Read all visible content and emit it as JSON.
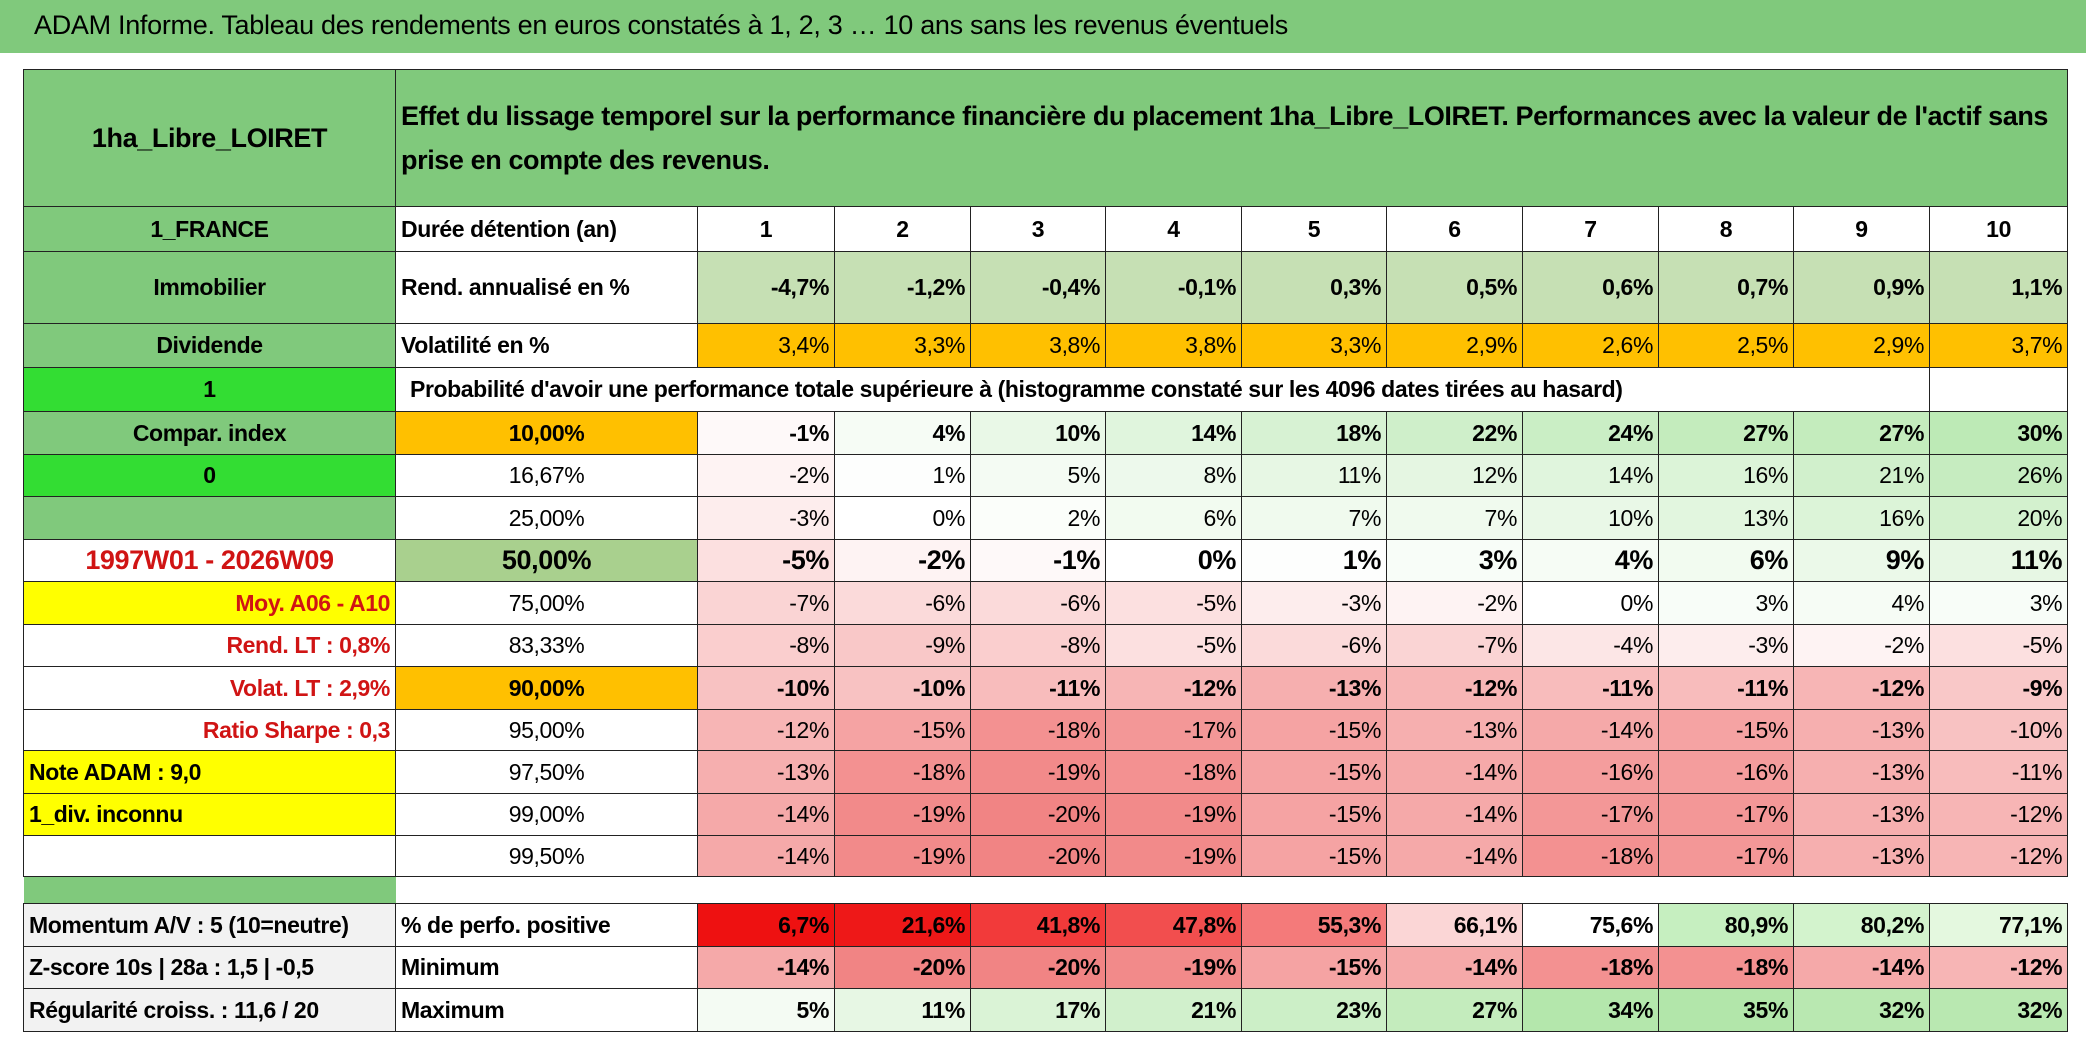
{
  "title": "ADAM Informe. Tableau des rendements en euros constatés à 1, 2, 3 … 10 ans sans les revenus éventuels",
  "header": {
    "name": "1ha_Libre_LOIRET",
    "description": "Effet du lissage temporel sur la performance financière du placement 1ha_Libre_LOIRET. Performances avec la valeur de l'actif sans prise en compte des revenus."
  },
  "rows": [
    {
      "left": "1_FRANCE",
      "label": "Durée détention (an)",
      "cells": [
        1,
        2,
        3,
        4,
        5,
        6,
        7,
        8,
        9,
        10
      ]
    },
    {
      "left": "Immobilier",
      "label": "Rend. annualisé en %",
      "cells": [
        "-4,7%",
        "-1,2%",
        "-0,4%",
        "-0,1%",
        "0,3%",
        "0,5%",
        "0,6%",
        "0,7%",
        "0,9%",
        "1,1%"
      ]
    },
    {
      "left": "Dividende",
      "label": "Volatilité en %",
      "cells": [
        "3,4%",
        "3,3%",
        "3,8%",
        "3,8%",
        "3,3%",
        "2,9%",
        "2,6%",
        "2,5%",
        "2,9%",
        "3,7%"
      ]
    },
    {
      "left": "1",
      "label": "Probabilité d'avoir une performance totale supérieure à (histogramme constaté sur les 4096 dates tirées au hasard)"
    },
    {
      "left": "Compar. index",
      "label": "10,00%",
      "cells": [
        "-1%",
        "4%",
        "10%",
        "14%",
        "18%",
        "22%",
        "24%",
        "27%",
        "27%",
        "30%"
      ]
    },
    {
      "left": "0",
      "label": "16,67%",
      "cells": [
        "-2%",
        "1%",
        "5%",
        "8%",
        "11%",
        "12%",
        "14%",
        "16%",
        "21%",
        "26%"
      ]
    },
    {
      "label": "25,00%",
      "cells": [
        "-3%",
        "0%",
        "2%",
        "6%",
        "7%",
        "7%",
        "10%",
        "13%",
        "16%",
        "20%"
      ]
    },
    {
      "left": "1997W01 - 2026W09",
      "label": "50,00%",
      "cells": [
        "-5%",
        "-2%",
        "-1%",
        "0%",
        "1%",
        "3%",
        "4%",
        "6%",
        "9%",
        "11%"
      ]
    },
    {
      "left": "Moy. A06 - A10",
      "label": "75,00%",
      "cells": [
        "-7%",
        "-6%",
        "-6%",
        "-5%",
        "-3%",
        "-2%",
        "0%",
        "3%",
        "4%",
        "3%"
      ]
    },
    {
      "left": "Rend. LT :   0,8%",
      "label": "83,33%",
      "cells": [
        "-8%",
        "-9%",
        "-8%",
        "-5%",
        "-6%",
        "-7%",
        "-4%",
        "-3%",
        "-2%",
        "-5%"
      ]
    },
    {
      "left": "Volat. LT :   2,9%",
      "label": "90,00%",
      "cells": [
        "-10%",
        "-10%",
        "-11%",
        "-12%",
        "-13%",
        "-12%",
        "-11%",
        "-11%",
        "-12%",
        "-9%"
      ]
    },
    {
      "left": "Ratio Sharpe :    0,3",
      "label": "95,00%",
      "cells": [
        "-12%",
        "-15%",
        "-18%",
        "-17%",
        "-15%",
        "-13%",
        "-14%",
        "-15%",
        "-13%",
        "-10%"
      ]
    },
    {
      "left": "Note ADAM : 9,0",
      "label": "97,50%",
      "cells": [
        "-13%",
        "-18%",
        "-19%",
        "-18%",
        "-15%",
        "-14%",
        "-16%",
        "-16%",
        "-13%",
        "-11%"
      ]
    },
    {
      "left": "1_div. inconnu",
      "label": "99,00%",
      "cells": [
        "-14%",
        "-19%",
        "-20%",
        "-19%",
        "-15%",
        "-14%",
        "-17%",
        "-17%",
        "-13%",
        "-12%"
      ]
    },
    {
      "label": "99,50%",
      "cells": [
        "-14%",
        "-19%",
        "-20%",
        "-19%",
        "-15%",
        "-14%",
        "-18%",
        "-17%",
        "-13%",
        "-12%"
      ]
    },
    {
      "left": "Momentum A/V : 5 (10=neutre)",
      "label": "% de perfo. positive",
      "cells": [
        "6,7%",
        "21,6%",
        "41,8%",
        "47,8%",
        "55,3%",
        "66,1%",
        "75,6%",
        "80,9%",
        "80,2%",
        "77,1%"
      ]
    },
    {
      "left": "Z-score 10s | 28a : 1,5 | -0,5",
      "label": "Minimum",
      "cells": [
        "-14%",
        "-20%",
        "-20%",
        "-19%",
        "-15%",
        "-14%",
        "-18%",
        "-18%",
        "-14%",
        "-12%"
      ]
    },
    {
      "left": "Régularité croiss. : 11,6 / 20",
      "label": "Maximum",
      "cells": [
        "5%",
        "11%",
        "17%",
        "21%",
        "23%",
        "27%",
        "34%",
        "35%",
        "32%",
        "32%"
      ]
    }
  ]
}
